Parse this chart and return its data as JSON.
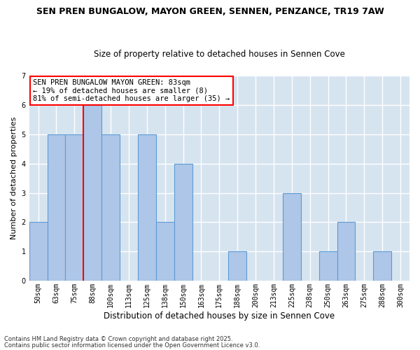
{
  "title_line1": "SEN PREN BUNGALOW, MAYON GREEN, SENNEN, PENZANCE, TR19 7AW",
  "title_line2": "Size of property relative to detached houses in Sennen Cove",
  "xlabel": "Distribution of detached houses by size in Sennen Cove",
  "ylabel": "Number of detached properties",
  "categories": [
    "50sqm",
    "63sqm",
    "75sqm",
    "88sqm",
    "100sqm",
    "113sqm",
    "125sqm",
    "138sqm",
    "150sqm",
    "163sqm",
    "175sqm",
    "188sqm",
    "200sqm",
    "213sqm",
    "225sqm",
    "238sqm",
    "250sqm",
    "263sqm",
    "275sqm",
    "288sqm",
    "300sqm"
  ],
  "values": [
    2,
    5,
    5,
    6,
    5,
    0,
    5,
    2,
    4,
    0,
    0,
    1,
    0,
    0,
    3,
    0,
    1,
    2,
    0,
    1,
    0
  ],
  "bar_color": "#aec6e8",
  "bar_edge_color": "#5b9bd5",
  "background_color": "#d6e4f0",
  "grid_color": "#ffffff",
  "ylim": [
    0,
    7
  ],
  "yticks": [
    0,
    1,
    2,
    3,
    4,
    5,
    6,
    7
  ],
  "annotation_box_text": "SEN PREN BUNGALOW MAYON GREEN: 83sqm\n← 19% of detached houses are smaller (8)\n81% of semi-detached houses are larger (35) →",
  "red_line_x": 2.5,
  "footnote1": "Contains HM Land Registry data © Crown copyright and database right 2025.",
  "footnote2": "Contains public sector information licensed under the Open Government Licence v3.0.",
  "fig_bg": "#ffffff",
  "title1_fontsize": 9.0,
  "title2_fontsize": 8.5,
  "ylabel_fontsize": 8.0,
  "xlabel_fontsize": 8.5,
  "tick_fontsize": 7.0,
  "annot_fontsize": 7.5,
  "footnote_fontsize": 6.0
}
